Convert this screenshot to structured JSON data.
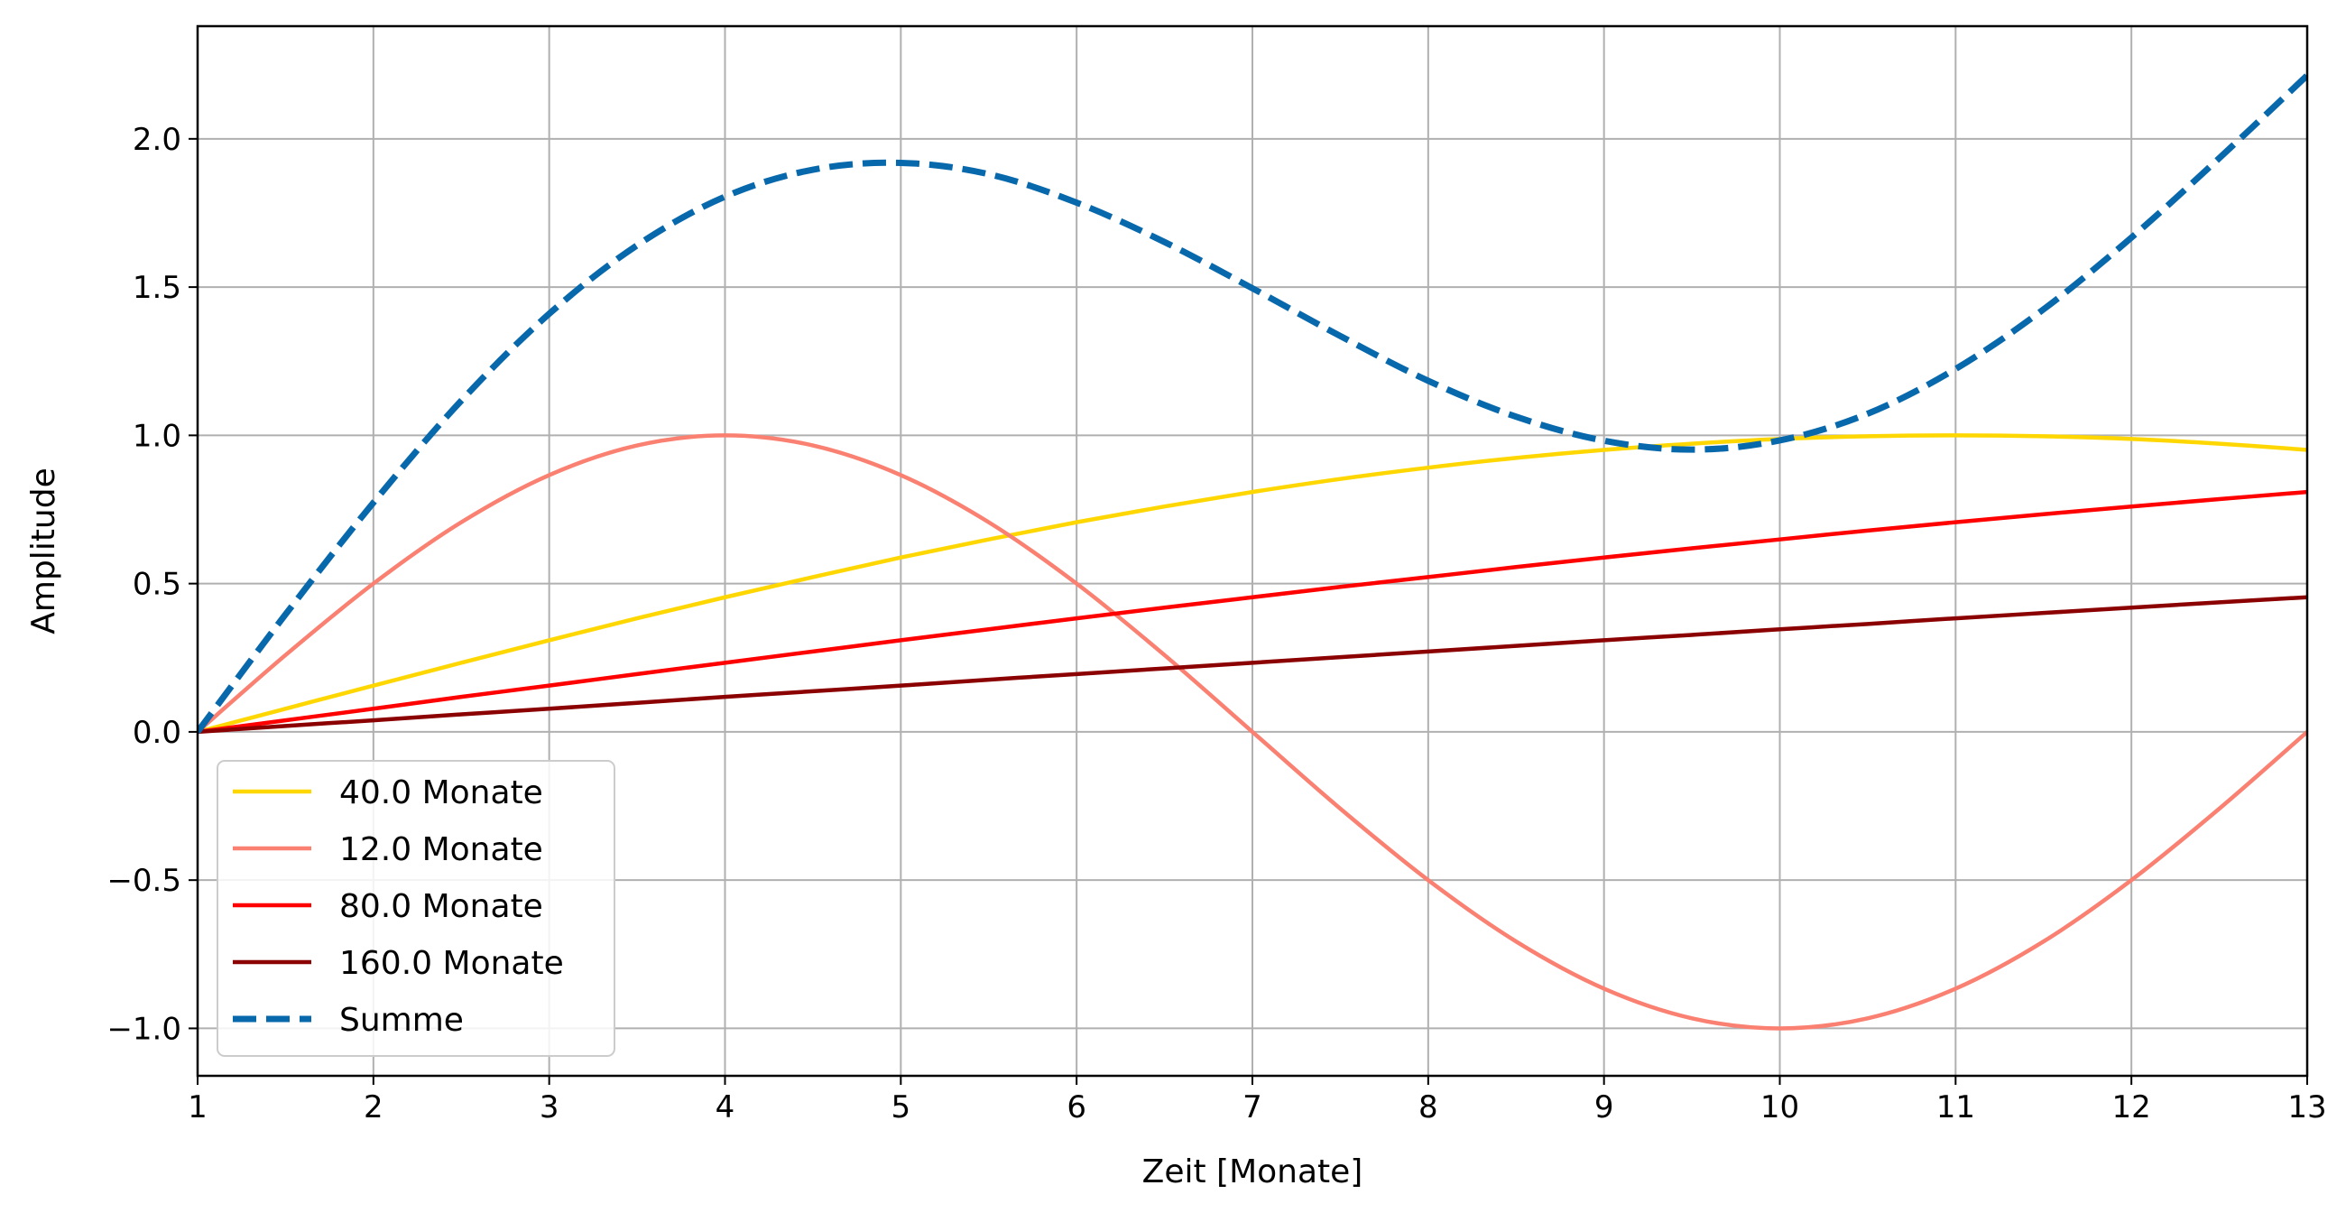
{
  "chart_data": {
    "type": "line",
    "title": "",
    "xlabel": "Zeit [Monate]",
    "ylabel": "Amplitude",
    "xlim": [
      1,
      13
    ],
    "ylim": [
      -1.16,
      2.38
    ],
    "xticks": [
      1,
      2,
      3,
      4,
      5,
      6,
      7,
      8,
      9,
      10,
      11,
      12,
      13
    ],
    "xtick_labels": [
      "1",
      "2",
      "3",
      "4",
      "5",
      "6",
      "7",
      "8",
      "9",
      "10",
      "11",
      "12",
      "13"
    ],
    "yticks": [
      -1.0,
      -0.5,
      0.0,
      0.5,
      1.0,
      1.5,
      2.0
    ],
    "ytick_labels": [
      "−1.0",
      "−0.5",
      "0.0",
      "0.5",
      "1.0",
      "1.5",
      "2.0"
    ],
    "grid": true,
    "legend_position": "lower-left",
    "x": [
      1,
      1.5,
      2,
      2.5,
      3,
      3.5,
      4,
      4.5,
      5,
      5.5,
      6,
      6.5,
      7,
      7.5,
      8,
      8.5,
      9,
      9.5,
      10,
      10.5,
      11,
      11.5,
      12,
      12.5,
      13
    ],
    "series": [
      {
        "name": "40.0 Monate",
        "color": "#FFD700",
        "dashed": false,
        "values": [
          0.0,
          0.078,
          0.156,
          0.233,
          0.309,
          0.383,
          0.454,
          0.522,
          0.588,
          0.649,
          0.707,
          0.76,
          0.809,
          0.853,
          0.891,
          0.924,
          0.951,
          0.972,
          0.988,
          0.997,
          1.0,
          0.997,
          0.988,
          0.972,
          0.951
        ]
      },
      {
        "name": "12.0 Monate",
        "color": "#FA8072",
        "dashed": false,
        "values": [
          0.0,
          0.259,
          0.5,
          0.707,
          0.866,
          0.966,
          1.0,
          0.966,
          0.866,
          0.707,
          0.5,
          0.259,
          0.0,
          -0.259,
          -0.5,
          -0.707,
          -0.866,
          -0.966,
          -1.0,
          -0.966,
          -0.866,
          -0.707,
          -0.5,
          -0.259,
          0.0
        ]
      },
      {
        "name": "80.0 Monate",
        "color": "#FF0000",
        "dashed": false,
        "values": [
          0.0,
          0.039,
          0.078,
          0.118,
          0.156,
          0.195,
          0.233,
          0.271,
          0.309,
          0.346,
          0.383,
          0.419,
          0.454,
          0.489,
          0.522,
          0.556,
          0.588,
          0.619,
          0.649,
          0.679,
          0.707,
          0.734,
          0.76,
          0.785,
          0.809
        ]
      },
      {
        "name": "160.0 Monate",
        "color": "#8B0000",
        "dashed": false,
        "values": [
          0.0,
          0.02,
          0.039,
          0.059,
          0.078,
          0.098,
          0.118,
          0.137,
          0.156,
          0.176,
          0.195,
          0.214,
          0.233,
          0.252,
          0.271,
          0.29,
          0.309,
          0.327,
          0.346,
          0.364,
          0.383,
          0.401,
          0.419,
          0.437,
          0.454
        ]
      },
      {
        "name": "Summe",
        "color": "#0868AC",
        "dashed": true,
        "values": [
          0.0,
          0.396,
          0.773,
          1.117,
          1.41,
          1.641,
          1.805,
          1.896,
          1.919,
          1.881,
          1.785,
          1.652,
          1.496,
          1.335,
          1.184,
          1.063,
          0.982,
          0.952,
          0.983,
          1.073,
          1.224,
          1.425,
          1.667,
          1.935,
          2.214
        ]
      }
    ]
  }
}
